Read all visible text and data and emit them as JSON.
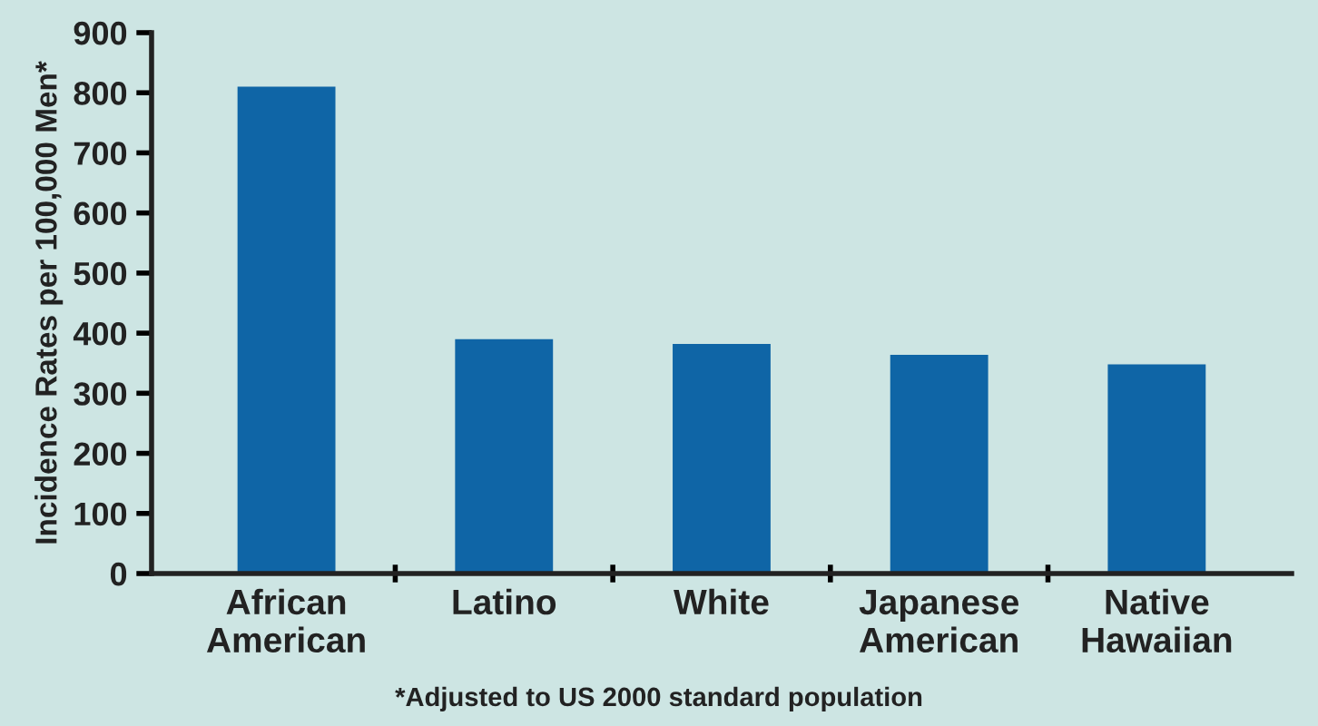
{
  "chart_data": {
    "type": "bar",
    "ylabel": "Incidence Rates per 100,000 Men*",
    "categories": [
      "African\nAmerican",
      "Latino",
      "White",
      "Japanese\nAmerican",
      "Native\nHawaiian"
    ],
    "values": [
      810,
      390,
      382,
      364,
      348
    ],
    "color": "#0f65a6",
    "ylim": [
      0,
      900
    ],
    "yticks": [
      0,
      100,
      200,
      300,
      400,
      500,
      600,
      700,
      800,
      900
    ],
    "grid": false,
    "annotations": [
      "*Adjusted to US 2000 standard population"
    ]
  }
}
